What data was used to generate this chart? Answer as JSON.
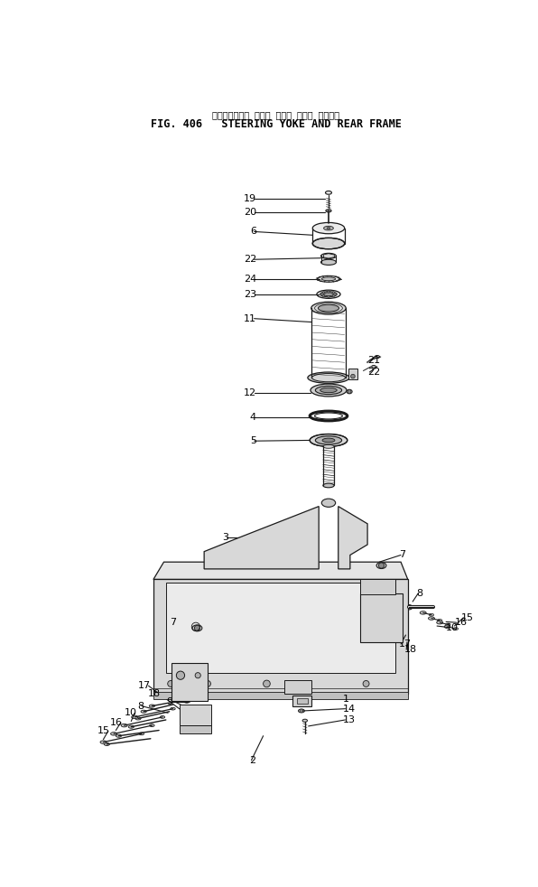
{
  "title_jp": "ステアリングゝ ヨーク および リアー フレーム",
  "title_en": "FIG. 406   STEERING YOKE AND REAR FRAME",
  "bg_color": "#ffffff",
  "line_color": "#1a1a1a",
  "fig_width": 5.96,
  "fig_height": 9.82,
  "dpi": 100
}
